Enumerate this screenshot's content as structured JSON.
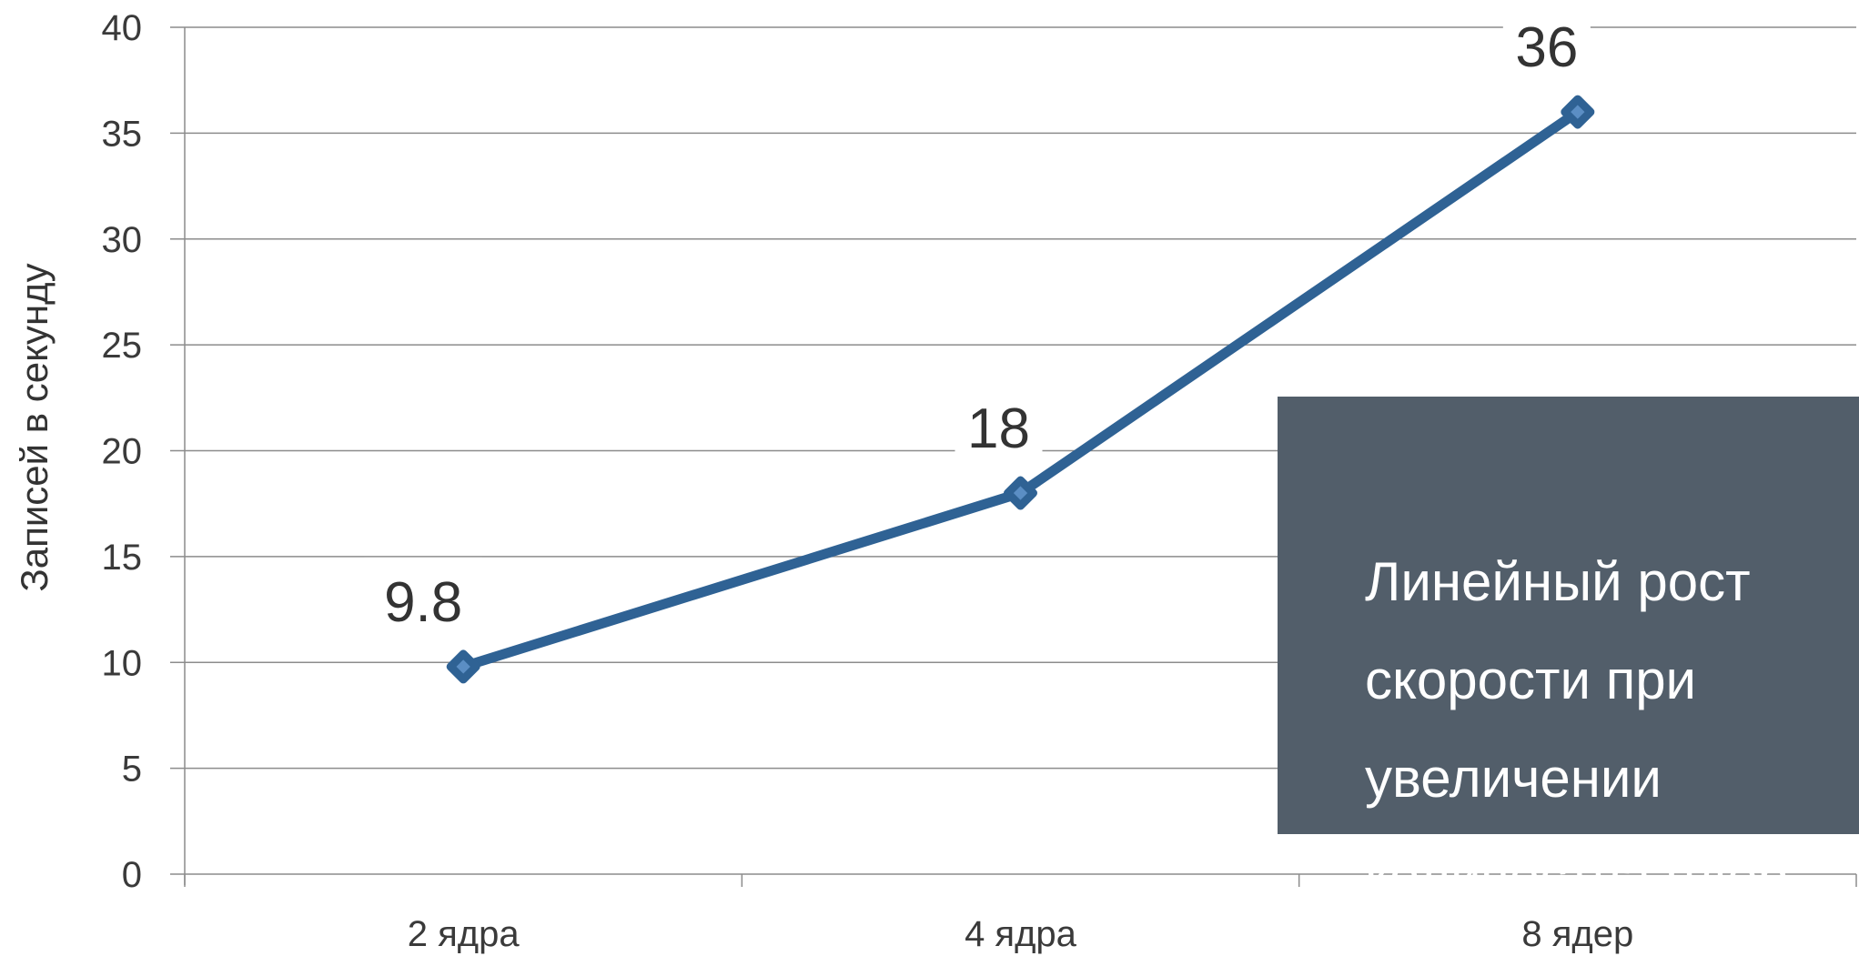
{
  "chart_data": {
    "type": "line",
    "categories": [
      "2 ядра",
      "4 ядра",
      "8 ядер"
    ],
    "series": [
      {
        "values": [
          9.8,
          18,
          36
        ]
      }
    ],
    "data_labels": [
      "9.8",
      "18",
      "36"
    ],
    "title": "",
    "xlabel": "",
    "ylabel": "Записей в секунду",
    "ylim": [
      0,
      40
    ],
    "yticks": [
      0,
      5,
      10,
      15,
      20,
      25,
      30,
      35,
      40
    ],
    "ytick_labels": [
      "0",
      "5",
      "10",
      "15",
      "20",
      "25",
      "30",
      "35",
      "40"
    ],
    "grid": true,
    "legend": "none",
    "marker": "diamond",
    "annotation": "Линейный рост скорости при увеличении количества ядер"
  },
  "colors": {
    "series_line": "#2f6294",
    "marker_fill": "#5b8ec4",
    "gridline": "#8c8c8c",
    "axis": "#8c8c8c",
    "callout_bg": "#525e6a",
    "callout_text": "#ffffff",
    "text": "#333333"
  }
}
